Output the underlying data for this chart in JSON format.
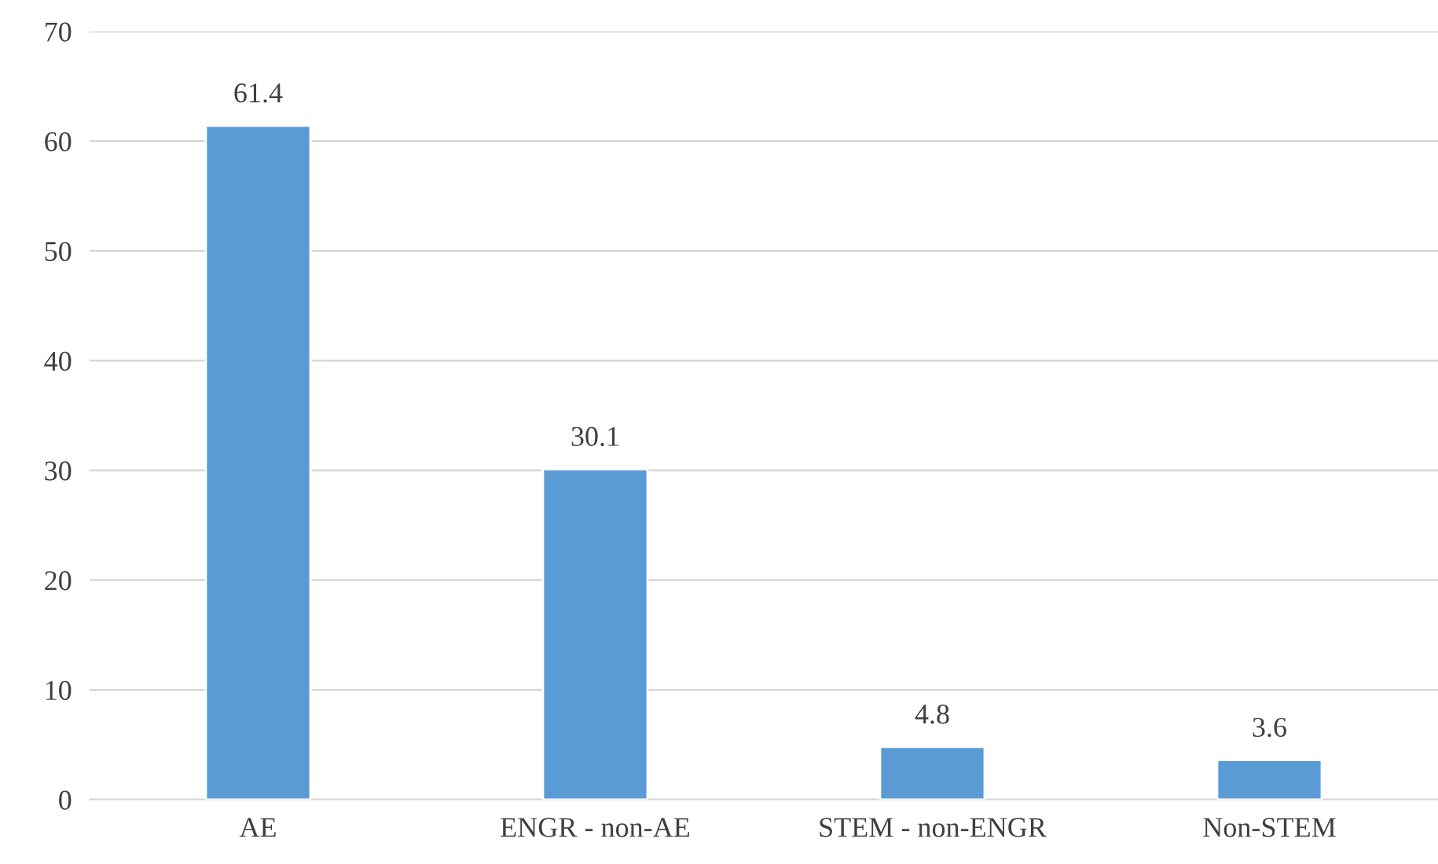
{
  "chart_data": {
    "type": "bar",
    "categories": [
      "AE",
      "ENGR - non-AE",
      "STEM - non-ENGR",
      "Non-STEM"
    ],
    "values": [
      61.4,
      30.1,
      4.8,
      3.6
    ],
    "color": "#5b9bd5",
    "ylim": [
      0,
      70
    ],
    "yticks": [
      0,
      10,
      20,
      30,
      40,
      50,
      60,
      70
    ],
    "grid": "y",
    "data_labels": true
  }
}
